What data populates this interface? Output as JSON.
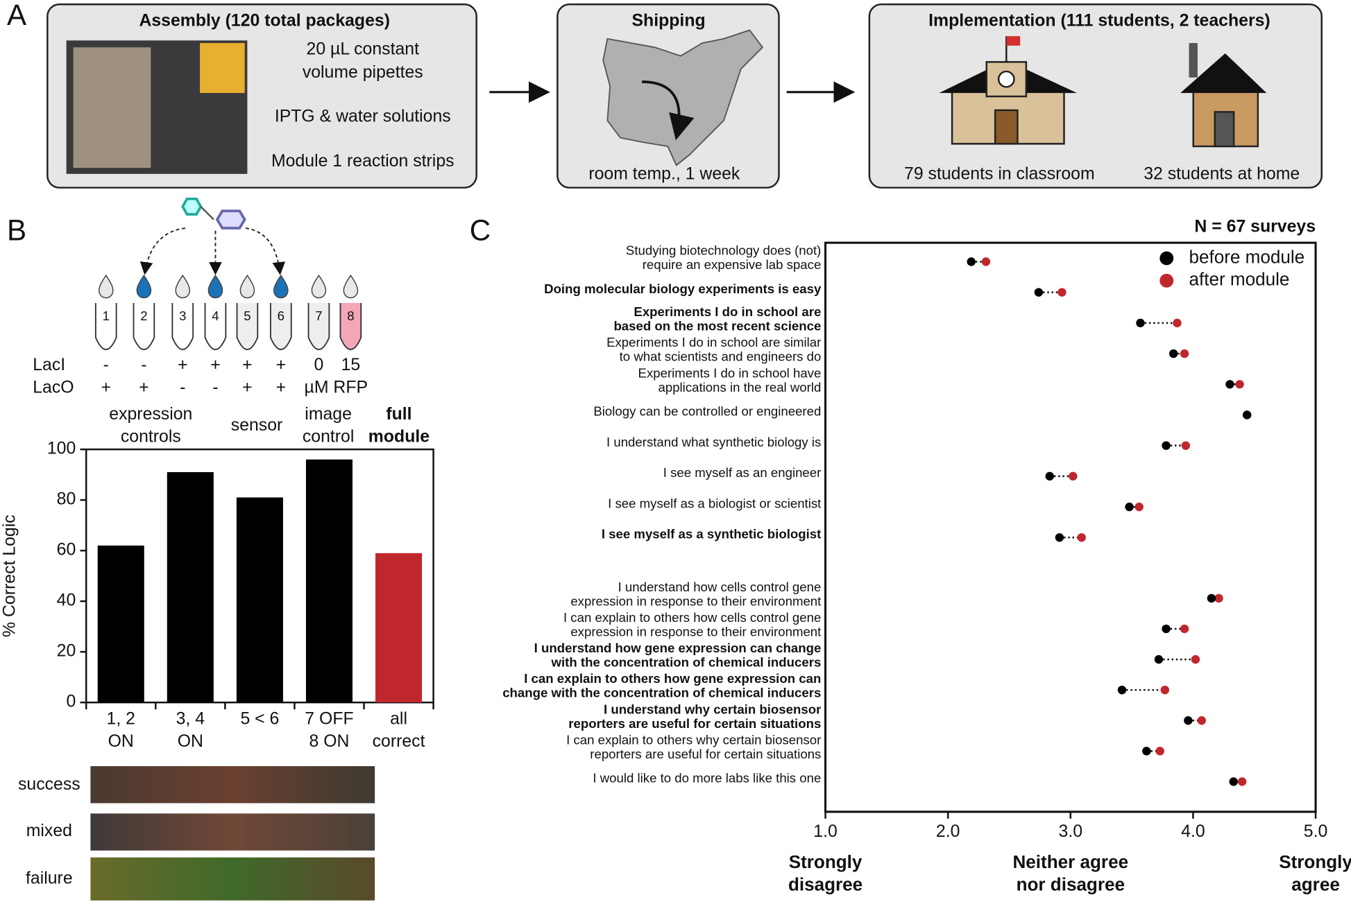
{
  "panel_labels": [
    "A",
    "B",
    "C"
  ],
  "assembly": {
    "title": "Assembly (120 total packages)",
    "items": [
      "20 µL constant",
      "volume pipettes",
      "IPTG & water solutions",
      "Module 1 reaction strips"
    ]
  },
  "shipping": {
    "title": "Shipping",
    "caption": "room temp., 1 week"
  },
  "implementation": {
    "title": "Implementation (111 students, 2 teachers)",
    "captions": [
      "79 students in classroom",
      "32 students at home"
    ]
  },
  "tubes": {
    "numbers": [
      1,
      2,
      3,
      4,
      5,
      6,
      7,
      8
    ],
    "rows": [
      {
        "label": "LacI",
        "values": [
          "-",
          "-",
          "+",
          "+",
          "+",
          "+",
          "0",
          "15"
        ]
      },
      {
        "label": "LacO",
        "values": [
          "+",
          "+",
          "-",
          "-",
          "+",
          "+"
        ],
        "unit": "µM RFP"
      }
    ],
    "groups": [
      {
        "lines": [
          "expression",
          "controls"
        ]
      },
      {
        "lines": [
          "sensor"
        ]
      },
      {
        "lines": [
          "image",
          "control"
        ]
      },
      {
        "lines": [
          "full",
          "module"
        ],
        "color": "#c0272d"
      }
    ]
  },
  "strips": [
    "success",
    "mixed",
    "failure"
  ],
  "chart_data": [
    {
      "type": "bar",
      "y_label": "% Correct Logic",
      "categories": [
        [
          "1, 2",
          "ON"
        ],
        [
          "3, 4",
          "ON"
        ],
        [
          "5 < 6"
        ],
        [
          "7 OFF",
          "8 ON"
        ],
        [
          "all",
          "correct"
        ]
      ],
      "values": [
        62,
        91,
        81,
        96,
        59
      ],
      "colors": [
        "#000000",
        "#000000",
        "#000000",
        "#000000",
        "#c0272d"
      ],
      "ylim": [
        0,
        100
      ],
      "yticks": [
        0,
        20,
        40,
        60,
        80,
        100
      ]
    },
    {
      "type": "dot",
      "annotation": "N = 67 surveys",
      "categories": [
        [
          "Studying biotechnology does (not)",
          "require an expensive lab space"
        ],
        [
          "Doing molecular biology experiments is easy"
        ],
        [
          "Experiments I do in school are",
          "based on the most recent science"
        ],
        [
          "Experiments I do in school are similar",
          "to what scientists and engineers do"
        ],
        [
          "Experiments I do in school have",
          "applications in the real world"
        ],
        [
          "Biology can be controlled or engineered"
        ],
        [
          "I understand what synthetic biology is"
        ],
        [
          "I see myself as an engineer"
        ],
        [
          "I see myself as a biologist or scientist"
        ],
        [
          "I see myself as a synthetic biologist"
        ],
        [
          "I understand how cells control gene",
          "expression in response to their environment"
        ],
        [
          "I can explain to others how cells control gene",
          "expression in response to their environment"
        ],
        [
          "I understand how gene expression can change",
          "with the concentration of chemical inducers"
        ],
        [
          "I can explain to others how gene expression can",
          "change with the concentration of chemical inducers"
        ],
        [
          "I understand why certain biosensor",
          "reporters are useful for certain situations"
        ],
        [
          "I can explain to others why certain biosensor",
          "reporters are useful for certain situations"
        ],
        [
          "I would like to do more labs like this one"
        ]
      ],
      "bold": [
        false,
        true,
        true,
        false,
        false,
        false,
        false,
        false,
        false,
        true,
        false,
        false,
        true,
        true,
        true,
        false,
        false
      ],
      "series": [
        {
          "name": "before module",
          "color": "#000000",
          "values": [
            2.19,
            2.74,
            3.57,
            3.84,
            4.3,
            4.44,
            3.78,
            2.83,
            3.48,
            2.91,
            4.15,
            3.78,
            3.72,
            3.42,
            3.96,
            3.62,
            4.33
          ]
        },
        {
          "name": "after module",
          "color": "#c0272d",
          "values": [
            2.31,
            2.93,
            3.87,
            3.93,
            4.38,
            4.44,
            3.94,
            3.02,
            3.56,
            3.09,
            4.21,
            3.93,
            4.02,
            3.77,
            4.07,
            3.73,
            4.4
          ]
        }
      ],
      "xlim": [
        1,
        5
      ],
      "xticks": [
        {
          "value": 1,
          "label": "1.0"
        },
        {
          "value": 2,
          "label": "2.0"
        },
        {
          "value": 3,
          "label": "3.0"
        },
        {
          "value": 4,
          "label": "4.0"
        },
        {
          "value": 5,
          "label": "5.0"
        }
      ],
      "x_category_labels": [
        {
          "value": 1,
          "lines": [
            "Strongly",
            "disagree"
          ]
        },
        {
          "value": 3,
          "lines": [
            "Neither agree",
            "nor disagree"
          ]
        },
        {
          "value": 5,
          "lines": [
            "Strongly",
            "agree"
          ]
        }
      ],
      "legend": "upper right"
    }
  ]
}
